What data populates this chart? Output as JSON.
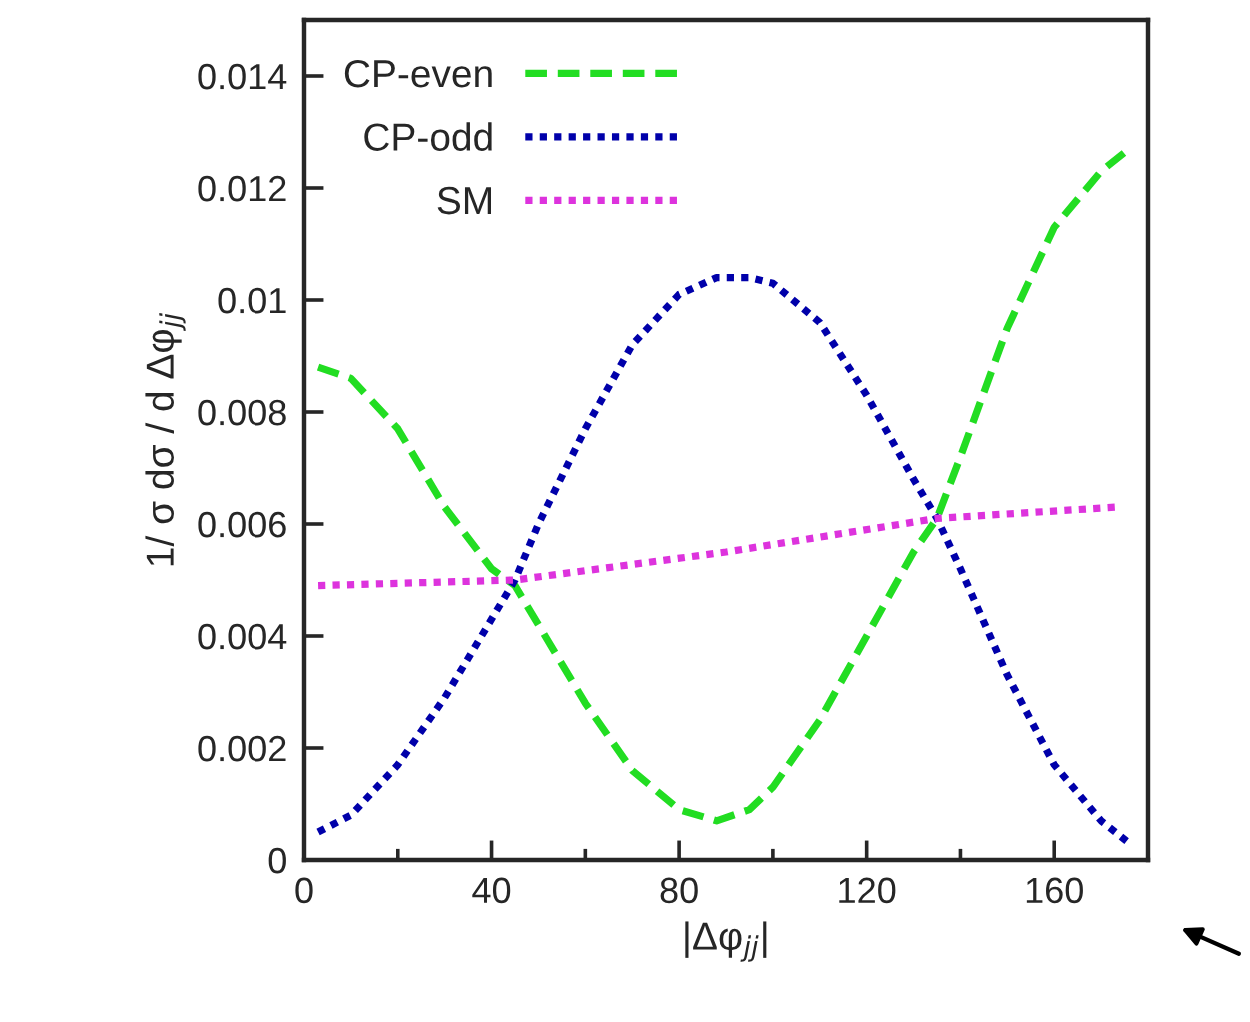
{
  "chart_data": {
    "type": "line",
    "xlabel": "|Δφ$_{jj}$|",
    "ylabel": "1/ σ dσ / d Δφ$_{jj}$",
    "xlim": [
      0,
      180
    ],
    "xticks": [
      0,
      40,
      80,
      120,
      160
    ],
    "ylim": [
      0,
      0.015
    ],
    "yticks": [
      0,
      0.002,
      0.004,
      0.006,
      0.008,
      0.01,
      0.012,
      0.014
    ],
    "grid": false,
    "legend": "top left",
    "marker": "none",
    "x": [
      3,
      10,
      20,
      30,
      40,
      45,
      50,
      60,
      70,
      80,
      88,
      95,
      100,
      110,
      120,
      130,
      135,
      140,
      150,
      160,
      170,
      176
    ],
    "series": [
      {
        "name": "CP-even",
        "color": "#22dd22",
        "line_style": "dashed",
        "values": [
          0.0088,
          0.0086,
          0.0077,
          0.0063,
          0.0052,
          0.0049,
          0.0042,
          0.0028,
          0.0016,
          0.0009,
          0.0007,
          0.0009,
          0.0013,
          0.0025,
          0.004,
          0.0055,
          0.0061,
          0.0072,
          0.0095,
          0.0113,
          0.0123,
          0.0127
        ]
      },
      {
        "name": "CP-odd",
        "color": "#0000aa",
        "line_style": "dotted",
        "values": [
          0.0005,
          0.0008,
          0.0017,
          0.0029,
          0.0043,
          0.005,
          0.006,
          0.0077,
          0.0092,
          0.0101,
          0.0104,
          0.0104,
          0.0103,
          0.0096,
          0.0083,
          0.0068,
          0.0061,
          0.0052,
          0.0033,
          0.0017,
          0.0007,
          0.0003
        ]
      },
      {
        "name": "SM",
        "color": "#dd33dd",
        "line_style": "dotted",
        "x": [
          3,
          45,
          90,
          135,
          173
        ],
        "values": [
          0.0049,
          0.005,
          0.0055,
          0.0061,
          0.0063
        ]
      }
    ]
  }
}
